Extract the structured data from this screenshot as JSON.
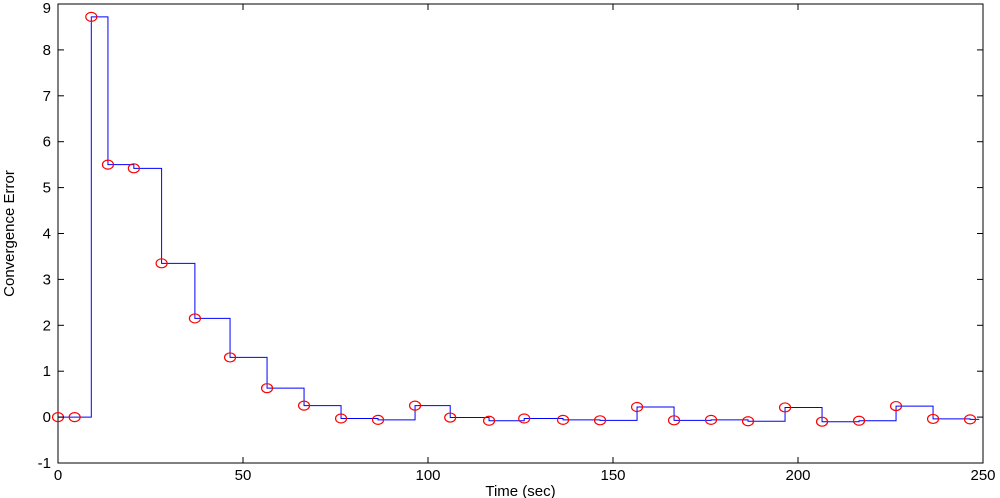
{
  "chart_data": {
    "type": "line",
    "title": "",
    "xlabel": "Time (sec)",
    "ylabel": "Convergence Error",
    "xlim": [
      0,
      250
    ],
    "ylim": [
      -1,
      9
    ],
    "xticks": [
      0,
      50,
      100,
      150,
      200,
      250
    ],
    "yticks": [
      -1,
      0,
      1,
      2,
      3,
      4,
      5,
      6,
      7,
      8,
      9
    ],
    "grid": false,
    "legend": "none",
    "series": [
      {
        "style": "stairs-with-markers",
        "line_color": "#0000ff",
        "marker_color": "#ff0000",
        "marker": "circle",
        "x": [
          0,
          4.5,
          9,
          13.5,
          20.5,
          28,
          37,
          46.5,
          56.5,
          66.5,
          76.5,
          86.5,
          96.5,
          106,
          116.5,
          126,
          136.5,
          146.5,
          156.5,
          166.5,
          176.5,
          186.5,
          196.5,
          206.5,
          216.5,
          226.5,
          236.5,
          246.5
        ],
        "y": [
          0.0,
          0.0,
          8.72,
          5.5,
          5.42,
          3.35,
          2.15,
          1.3,
          0.63,
          0.25,
          -0.03,
          -0.06,
          0.25,
          -0.01,
          -0.08,
          -0.03,
          -0.06,
          -0.07,
          0.22,
          -0.07,
          -0.06,
          -0.09,
          0.21,
          -0.1,
          -0.08,
          0.24,
          -0.04,
          -0.05
        ]
      }
    ]
  }
}
